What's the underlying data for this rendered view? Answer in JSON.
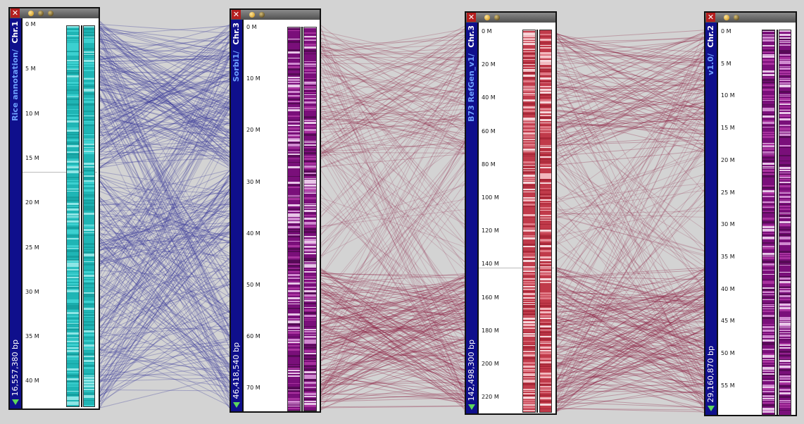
{
  "colors": {
    "background": "#d3d3d3",
    "sidebar": "#0f0f8c",
    "link_blue": "#3c3c9c",
    "link_red": "#8c1e40",
    "track_cyan": "#2ec6c6",
    "track_purple": "#8c1e8c",
    "track_red": "#d04a5a"
  },
  "panels": [
    {
      "chr": "Chr.1",
      "genome": "Rice annotation/",
      "bp": "16,557,380 bp",
      "track_color": "cyan",
      "ticks": [
        "0 M",
        "5 M",
        "10 M",
        "15 M",
        "20 M",
        "25 M",
        "30 M",
        "35 M",
        "40 M"
      ]
    },
    {
      "chr": "Chr.3",
      "genome": "Sorbi1/",
      "bp": "46,418,540 bp",
      "track_color": "purple",
      "ticks": [
        "0 M",
        "10 M",
        "20 M",
        "30 M",
        "40 M",
        "50 M",
        "60 M",
        "70 M"
      ]
    },
    {
      "chr": "Chr.3",
      "genome": "B73 RefGen_v1/",
      "bp": "142,498,300 bp",
      "track_color": "red",
      "ticks": [
        "0 M",
        "20 M",
        "40 M",
        "60 M",
        "80 M",
        "100 M",
        "120 M",
        "140 M",
        "160 M",
        "180 M",
        "200 M",
        "220 M"
      ]
    },
    {
      "chr": "Chr.2",
      "genome": "v1.0/",
      "bp": "29,160,870 bp",
      "track_color": "purple",
      "ticks": [
        "0 M",
        "5 M",
        "10 M",
        "15 M",
        "20 M",
        "25 M",
        "30 M",
        "35 M",
        "40 M",
        "45 M",
        "50 M",
        "55 M"
      ]
    }
  ],
  "icons": {
    "close": "close-icon",
    "minimize": "minimize-icon",
    "settings": "settings-icon",
    "expand": "expand-icon",
    "scroll": "triangle-down-icon"
  },
  "close_glyph": "✕"
}
